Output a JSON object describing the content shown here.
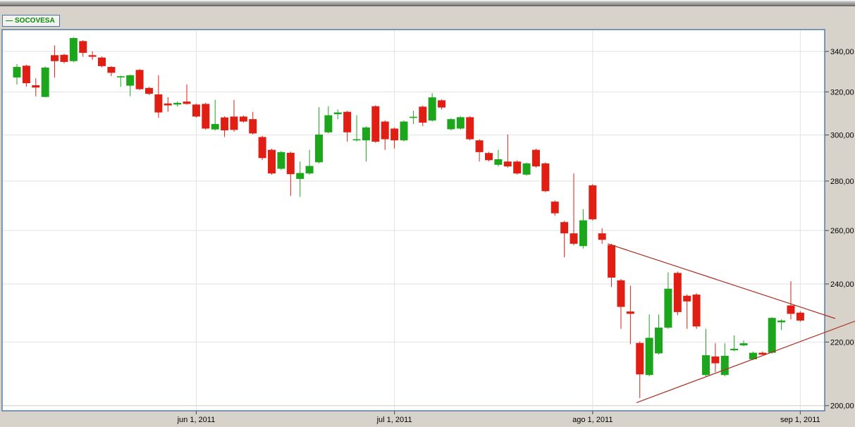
{
  "legend": {
    "dash": "—",
    "symbol": "SOCOVESA"
  },
  "chart_data": {
    "type": "candlestick",
    "title": "SOCOVESA",
    "y_scale": "log",
    "grid": true,
    "y_axis": {
      "side": "right",
      "ticks": [
        {
          "value": 340,
          "label": "340,00"
        },
        {
          "value": 320,
          "label": "320,00"
        },
        {
          "value": 300,
          "label": "300,00"
        },
        {
          "value": 280,
          "label": "280,00"
        },
        {
          "value": 260,
          "label": "260,00"
        },
        {
          "value": 240,
          "label": "240,00"
        },
        {
          "value": 220,
          "label": "220,00"
        },
        {
          "value": 200,
          "label": "200,00",
          "grid_color": "#d5cbb8"
        }
      ]
    },
    "x_axis": {
      "ticks": [
        {
          "index": 19,
          "label": "jun 1, 2011"
        },
        {
          "index": 40,
          "label": "jul 1, 2011"
        },
        {
          "index": 61,
          "label": "ago 1, 2011"
        },
        {
          "index": 83,
          "label": "sep 1, 2011"
        }
      ]
    },
    "candle_format": [
      "open",
      "high",
      "low",
      "close"
    ],
    "candles": [
      [
        327.0,
        333.6,
        323.6,
        332.2
      ],
      [
        332.8,
        333.3,
        322.5,
        324.2
      ],
      [
        323.2,
        326.6,
        317.9,
        322.1
      ],
      [
        317.6,
        332.4,
        317.4,
        331.9
      ],
      [
        338.1,
        343.1,
        327.0,
        335.1
      ],
      [
        338.3,
        338.8,
        334.0,
        334.7
      ],
      [
        335.1,
        347.4,
        334.5,
        346.9
      ],
      [
        345.3,
        345.8,
        337.3,
        339.3
      ],
      [
        338.1,
        340.1,
        335.7,
        337.3
      ],
      [
        336.9,
        337.4,
        332.0,
        332.6
      ],
      [
        332.2,
        332.7,
        327.6,
        329.3
      ],
      [
        327.2,
        327.9,
        322.4,
        327.6
      ],
      [
        323.0,
        328.4,
        317.9,
        328.1
      ],
      [
        330.7,
        331.2,
        320.9,
        321.3
      ],
      [
        321.9,
        322.4,
        318.5,
        319.1
      ],
      [
        318.8,
        328.1,
        307.8,
        310.3
      ],
      [
        314.5,
        317.5,
        310.6,
        313.6
      ],
      [
        314.0,
        315.5,
        313.0,
        314.8
      ],
      [
        315.4,
        323.6,
        313.9,
        314.3
      ],
      [
        314.0,
        314.5,
        307.9,
        308.4
      ],
      [
        314.3,
        314.8,
        302.4,
        302.9
      ],
      [
        302.5,
        316.2,
        302.0,
        305.0
      ],
      [
        308.0,
        308.5,
        299.1,
        302.1
      ],
      [
        308.4,
        316.2,
        301.5,
        302.3
      ],
      [
        308.4,
        308.9,
        305.6,
        306.1
      ],
      [
        307.2,
        310.6,
        300.2,
        300.7
      ],
      [
        299.1,
        299.6,
        289.0,
        289.8
      ],
      [
        293.4,
        293.9,
        282.7,
        283.2
      ],
      [
        285.2,
        292.9,
        284.7,
        292.4
      ],
      [
        292.1,
        292.6,
        273.9,
        282.9
      ],
      [
        280.9,
        288.3,
        273.4,
        283.4
      ],
      [
        283.2,
        293.4,
        282.7,
        286.4
      ],
      [
        288.0,
        312.8,
        287.5,
        300.2
      ],
      [
        301.2,
        313.2,
        300.7,
        309.0
      ],
      [
        309.5,
        311.7,
        307.2,
        310.3
      ],
      [
        310.6,
        311.1,
        297.0,
        301.2
      ],
      [
        297.6,
        309.0,
        297.1,
        298.1
      ],
      [
        297.6,
        303.9,
        288.3,
        303.4
      ],
      [
        313.2,
        313.7,
        296.5,
        297.0
      ],
      [
        306.1,
        306.6,
        293.4,
        298.1
      ],
      [
        302.9,
        303.4,
        294.0,
        297.6
      ],
      [
        297.6,
        306.6,
        297.1,
        306.1
      ],
      [
        308.0,
        311.1,
        305.0,
        308.3
      ],
      [
        313.0,
        313.5,
        304.0,
        305.6
      ],
      [
        306.6,
        319.4,
        306.1,
        317.4
      ],
      [
        316.0,
        316.5,
        311.7,
        312.6
      ],
      [
        302.6,
        307.7,
        302.1,
        307.2
      ],
      [
        302.9,
        308.6,
        302.4,
        308.1
      ],
      [
        308.1,
        308.6,
        297.6,
        298.1
      ],
      [
        297.6,
        298.1,
        288.3,
        292.4
      ],
      [
        292.0,
        292.5,
        288.4,
        288.9
      ],
      [
        286.9,
        293.4,
        286.2,
        289.3
      ],
      [
        288.3,
        300.2,
        285.7,
        286.2
      ],
      [
        288.3,
        288.8,
        282.7,
        283.2
      ],
      [
        282.7,
        287.9,
        282.2,
        287.5
      ],
      [
        293.4,
        293.9,
        285.7,
        286.2
      ],
      [
        287.5,
        288.0,
        275.3,
        275.8
      ],
      [
        271.5,
        272.0,
        265.8,
        266.8
      ],
      [
        263.3,
        263.8,
        249.8,
        258.9
      ],
      [
        258.9,
        283.2,
        254.3,
        254.9
      ],
      [
        254.0,
        268.4,
        253.1,
        264.0
      ],
      [
        278.2,
        278.7,
        263.9,
        264.4
      ],
      [
        258.9,
        260.9,
        254.9,
        256.4
      ],
      [
        254.4,
        254.9,
        238.9,
        242.3
      ],
      [
        241.3,
        241.8,
        224.4,
        231.9
      ],
      [
        230.3,
        239.4,
        219.3,
        229.5
      ],
      [
        219.7,
        220.2,
        202.3,
        209.6
      ],
      [
        209.4,
        229.3,
        209.0,
        221.4
      ],
      [
        216.3,
        229.3,
        215.9,
        224.8
      ],
      [
        224.8,
        244.2,
        224.4,
        238.3
      ],
      [
        244.0,
        244.5,
        229.0,
        230.1
      ],
      [
        235.8,
        236.3,
        224.4,
        233.8
      ],
      [
        236.2,
        236.7,
        224.4,
        225.2
      ],
      [
        209.4,
        224.4,
        209.0,
        215.7
      ],
      [
        215.3,
        219.6,
        210.3,
        213.1
      ],
      [
        209.4,
        219.6,
        209.0,
        215.5
      ],
      [
        217.3,
        222.2,
        217.0,
        217.8
      ],
      [
        218.9,
        220.5,
        218.6,
        219.6
      ],
      [
        214.4,
        216.9,
        214.1,
        216.5
      ],
      [
        216.5,
        216.9,
        215.7,
        215.9
      ],
      [
        216.5,
        228.3,
        216.2,
        228.1
      ],
      [
        226.6,
        227.6,
        224.0,
        227.2
      ],
      [
        232.4,
        241.0,
        227.6,
        229.5
      ],
      [
        229.9,
        230.4,
        226.8,
        227.2
      ]
    ],
    "trendlines": [
      {
        "name": "descending-resistance",
        "from": {
          "index": 62.6,
          "price": 254.9
        },
        "to": {
          "index": 86.7,
          "price": 227.9
        }
      },
      {
        "name": "ascending-support",
        "from": {
          "index": 65.65,
          "price": 200.9
        },
        "to": {
          "index": 88.8,
          "price": 227.0
        }
      }
    ],
    "colors": {
      "up": "#1ca61c",
      "down": "#e01e14",
      "trendline": "#aa2e24",
      "grid": "#e2e2e2",
      "border": "#4d74a4",
      "tick": "#444444",
      "label": "#000000",
      "plot_background": "#ffffff",
      "outer_background": "#d7d3cb",
      "legend_text": "#0a8a0a"
    }
  }
}
